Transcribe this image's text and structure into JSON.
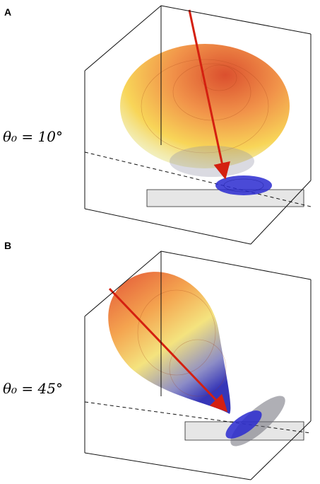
{
  "panels": [
    {
      "label": "A",
      "angle_label": "θ₀ = 10°"
    },
    {
      "label": "B",
      "angle_label": "θ₀ = 45°"
    }
  ]
}
